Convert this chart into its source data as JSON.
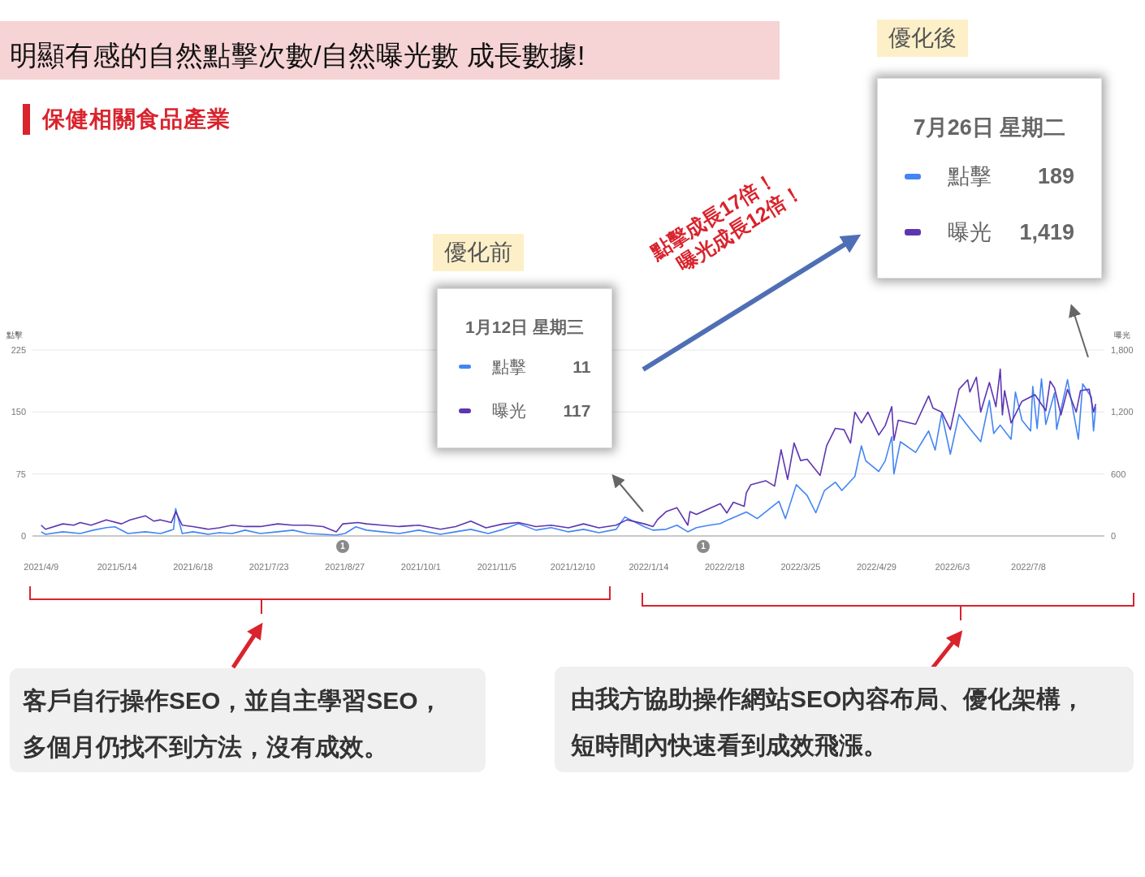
{
  "chart_data": {
    "type": "line",
    "title": "明顯有感的自然點擊次數/自然曝光數 成長數據!",
    "subtitle": "保健相關食品產業",
    "ylabel": "點擊",
    "y2label": "曝光",
    "xlim": [
      "2021-04-05",
      "2022-08-12"
    ],
    "xticks": [
      {
        "value": "2021-04-09",
        "label": "2021/4/9"
      },
      {
        "value": "2021-05-14",
        "label": "2021/5/14"
      },
      {
        "value": "2021-06-18",
        "label": "2021/6/18"
      },
      {
        "value": "2021-07-23",
        "label": "2021/7/23"
      },
      {
        "value": "2021-08-27",
        "label": "2021/8/27"
      },
      {
        "value": "2021-10-01",
        "label": "2021/10/1"
      },
      {
        "value": "2021-11-05",
        "label": "2021/11/5"
      },
      {
        "value": "2021-12-10",
        "label": "2021/12/10"
      },
      {
        "value": "2022-01-14",
        "label": "2022/1/14"
      },
      {
        "value": "2022-02-18",
        "label": "2022/2/18"
      },
      {
        "value": "2022-03-25",
        "label": "2022/3/25"
      },
      {
        "value": "2022-04-29",
        "label": "2022/4/29"
      },
      {
        "value": "2022-06-03",
        "label": "2022/6/3"
      },
      {
        "value": "2022-07-08",
        "label": "2022/7/8"
      }
    ],
    "ylim": [
      0,
      225
    ],
    "yticks": [
      0,
      75,
      150,
      225
    ],
    "y2lim": [
      0,
      1800
    ],
    "y2ticks": [
      0,
      {
        "value": 600,
        "label": "600"
      },
      {
        "value": 1200,
        "label": "1,200"
      },
      {
        "value": 1800,
        "label": "1,800"
      }
    ],
    "grid": "y",
    "legend": "top",
    "marker": "none",
    "line_style": "solid",
    "series": [
      {
        "name": "點擊",
        "color": "#4285f4",
        "x": [
          "2021-04-09",
          "2021-04-11",
          "2021-04-19",
          "2021-04-27",
          "2021-05-03",
          "2021-05-09",
          "2021-05-13",
          "2021-05-19",
          "2021-05-27",
          "2021-06-03",
          "2021-06-08",
          "2021-06-09",
          "2021-06-10",
          "2021-06-13",
          "2021-06-18",
          "2021-06-25",
          "2021-06-30",
          "2021-07-06",
          "2021-07-12",
          "2021-07-19",
          "2021-07-27",
          "2021-08-03",
          "2021-08-10",
          "2021-08-17",
          "2021-08-23",
          "2021-08-27",
          "2021-09-01",
          "2021-09-06",
          "2021-09-13",
          "2021-09-21",
          "2021-09-30",
          "2021-10-10",
          "2021-10-17",
          "2021-10-24",
          "2021-11-01",
          "2021-11-08",
          "2021-11-15",
          "2021-11-23",
          "2021-11-30",
          "2021-12-08",
          "2021-12-15",
          "2021-12-22",
          "2021-12-30",
          "2022-01-03",
          "2022-01-12",
          "2022-01-16",
          "2022-01-22",
          "2022-01-27",
          "2022-02-01",
          "2022-02-05",
          "2022-02-11",
          "2022-02-16",
          "2022-02-20",
          "2022-02-28",
          "2022-03-05",
          "2022-03-15",
          "2022-03-18",
          "2022-03-23",
          "2022-03-28",
          "2022-04-01",
          "2022-04-05",
          "2022-04-10",
          "2022-04-13",
          "2022-04-19",
          "2022-04-22",
          "2022-04-24",
          "2022-04-30",
          "2022-05-03",
          "2022-05-06",
          "2022-05-07",
          "2022-05-10",
          "2022-05-17",
          "2022-05-23",
          "2022-05-26",
          "2022-05-29",
          "2022-06-02",
          "2022-06-06",
          "2022-06-11",
          "2022-06-16",
          "2022-06-20",
          "2022-06-22",
          "2022-06-25",
          "2022-06-30",
          "2022-07-02",
          "2022-07-05",
          "2022-07-09",
          "2022-07-10",
          "2022-07-12",
          "2022-07-14",
          "2022-07-16",
          "2022-07-20",
          "2022-07-21",
          "2022-07-26",
          "2022-07-31",
          "2022-08-02",
          "2022-08-06",
          "2022-08-07",
          "2022-08-08"
        ],
        "values": [
          5,
          2,
          5,
          3,
          7,
          10,
          11,
          3,
          5,
          3,
          7,
          8,
          33,
          3,
          5,
          2,
          4,
          3,
          7,
          3,
          5,
          7,
          3,
          2,
          1,
          3,
          11,
          7,
          5,
          3,
          7,
          2,
          5,
          8,
          3,
          8,
          15,
          7,
          10,
          5,
          8,
          4,
          8,
          23,
          11,
          7,
          8,
          13,
          5,
          10,
          13,
          15,
          20,
          29,
          21,
          42,
          21,
          62,
          49,
          28,
          55,
          65,
          55,
          72,
          109,
          91,
          78,
          91,
          120,
          75,
          114,
          101,
          127,
          104,
          148,
          99,
          147,
          130,
          114,
          164,
          124,
          134,
          117,
          174,
          140,
          127,
          181,
          130,
          190,
          135,
          173,
          129,
          189,
          117,
          184,
          168,
          127,
          156
        ]
      },
      {
        "name": "曝光",
        "color": "#5e35b1",
        "axis": "y2",
        "x": [
          "2021-04-09",
          "2021-04-11",
          "2021-04-19",
          "2021-04-24",
          "2021-04-27",
          "2021-05-02",
          "2021-05-09",
          "2021-05-16",
          "2021-05-20",
          "2021-05-27",
          "2021-05-31",
          "2021-06-03",
          "2021-06-08",
          "2021-06-10",
          "2021-06-13",
          "2021-06-18",
          "2021-06-25",
          "2021-06-30",
          "2021-07-06",
          "2021-07-12",
          "2021-07-19",
          "2021-07-27",
          "2021-08-03",
          "2021-08-10",
          "2021-08-17",
          "2021-08-23",
          "2021-08-26",
          "2021-09-02",
          "2021-09-06",
          "2021-09-13",
          "2021-09-21",
          "2021-09-30",
          "2021-10-10",
          "2021-10-17",
          "2021-10-24",
          "2021-10-31",
          "2021-11-08",
          "2021-11-15",
          "2021-11-23",
          "2021-11-30",
          "2021-12-08",
          "2021-12-15",
          "2021-12-22",
          "2021-12-30",
          "2022-01-04",
          "2022-01-12",
          "2022-01-16",
          "2022-01-18",
          "2022-01-22",
          "2022-01-27",
          "2022-02-01",
          "2022-02-02",
          "2022-02-05",
          "2022-02-09",
          "2022-02-16",
          "2022-02-19",
          "2022-02-22",
          "2022-02-27",
          "2022-02-28",
          "2022-03-02",
          "2022-03-09",
          "2022-03-13",
          "2022-03-16",
          "2022-03-19",
          "2022-03-22",
          "2022-03-25",
          "2022-03-28",
          "2022-04-03",
          "2022-04-06",
          "2022-04-10",
          "2022-04-14",
          "2022-04-17",
          "2022-04-19",
          "2022-04-22",
          "2022-04-25",
          "2022-04-30",
          "2022-05-03",
          "2022-05-06",
          "2022-05-07",
          "2022-05-09",
          "2022-05-17",
          "2022-05-23",
          "2022-05-25",
          "2022-05-29",
          "2022-06-02",
          "2022-06-06",
          "2022-06-10",
          "2022-06-11",
          "2022-06-14",
          "2022-06-16",
          "2022-06-20",
          "2022-06-23",
          "2022-06-25",
          "2022-06-26",
          "2022-06-27",
          "2022-06-30",
          "2022-07-05",
          "2022-07-11",
          "2022-07-16",
          "2022-07-18",
          "2022-07-20",
          "2022-07-23",
          "2022-07-26",
          "2022-07-30",
          "2022-08-01",
          "2022-08-05",
          "2022-08-07",
          "2022-08-08"
        ],
        "values": [
          104,
          65,
          117,
          104,
          130,
          104,
          156,
          117,
          156,
          195,
          143,
          156,
          130,
          235,
          104,
          91,
          65,
          78,
          104,
          91,
          91,
          117,
          104,
          104,
          91,
          39,
          117,
          130,
          117,
          104,
          91,
          104,
          65,
          91,
          143,
          78,
          117,
          130,
          91,
          104,
          78,
          117,
          78,
          104,
          156,
          117,
          91,
          156,
          235,
          274,
          104,
          235,
          208,
          248,
          313,
          222,
          326,
          287,
          417,
          495,
          534,
          482,
          834,
          547,
          899,
          730,
          743,
          586,
          873,
          1042,
          1029,
          899,
          1199,
          1094,
          1199,
          977,
          1068,
          1251,
          925,
          1120,
          1081,
          1355,
          1238,
          1199,
          1029,
          1420,
          1511,
          1394,
          1537,
          1199,
          1485,
          1251,
          1615,
          1172,
          1407,
          1094,
          1303,
          1368,
          1212,
          1498,
          1433,
          1172,
          1419,
          1199,
          1407,
          1420,
          1199,
          1277
        ]
      }
    ],
    "annotations": [
      "優化前",
      "1月12日 星期三",
      "11",
      "117",
      "優化後",
      "7月26日 星期二",
      "189",
      "1,419",
      "點擊成長17倍！",
      "曝光成長12倍！",
      "客戶自行操作SEO，並自主學習SEO，",
      "多個月仍找不到方法，沒有成效。",
      "由我方協助操作網站SEO內容布局、優化架構，",
      "短時間內快速看到成效飛漲。",
      "1",
      "1"
    ]
  }
}
